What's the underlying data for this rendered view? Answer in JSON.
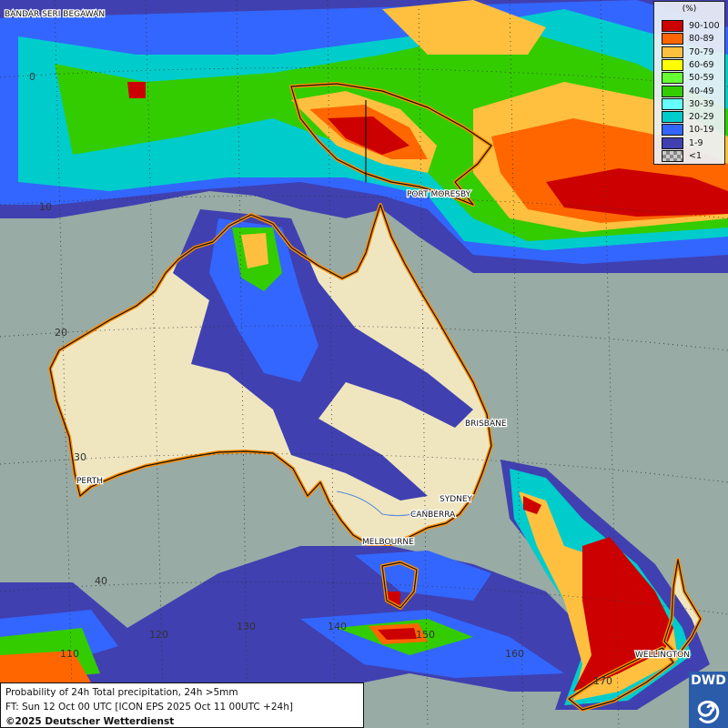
{
  "legend": {
    "unit": "(%)",
    "entries": [
      {
        "label": "90-100",
        "color": "#cc0000"
      },
      {
        "label": "80-89",
        "color": "#ff6600"
      },
      {
        "label": "70-79",
        "color": "#ffc040"
      },
      {
        "label": "60-69",
        "color": "#ffff00"
      },
      {
        "label": "50-59",
        "color": "#66ff33"
      },
      {
        "label": "40-49",
        "color": "#33cc00"
      },
      {
        "label": "30-39",
        "color": "#66ffff"
      },
      {
        "label": "20-29",
        "color": "#00cccc"
      },
      {
        "label": "10-19",
        "color": "#3366ff"
      },
      {
        "label": "1-9",
        "color": "#4040b0"
      },
      {
        "label": "<1",
        "color": "#a8a8a8"
      }
    ]
  },
  "footer": {
    "line1": "Probability of 24h Total precipitation, 24h >5mm",
    "line2": "FT: Sun 12 Oct 00 UTC [ICON EPS 2025 Oct 11 00UTC +24h]",
    "line3": "©2025 Deutscher Wetterdienst"
  },
  "logo": {
    "text": "DWD"
  },
  "cities": {
    "bandar": "BANDAR SERI BEGAWAN",
    "port_moresby": "PORT MORESBY",
    "brisbane": "BRISBANE",
    "perth": "PERTH",
    "sydney": "SYDNEY",
    "canberra": "CANBERRA",
    "melbourne": "MELBOURNE",
    "wellington": "WELLINGTON"
  },
  "grid_labels": {
    "lat": [
      "0",
      "10",
      "20",
      "30",
      "40"
    ],
    "lon": [
      "110",
      "120",
      "130",
      "140",
      "150",
      "160",
      "170"
    ]
  },
  "colors": {
    "ocean": "#98aba5",
    "land": "#efe6c0",
    "coast": "#ff8c00"
  }
}
